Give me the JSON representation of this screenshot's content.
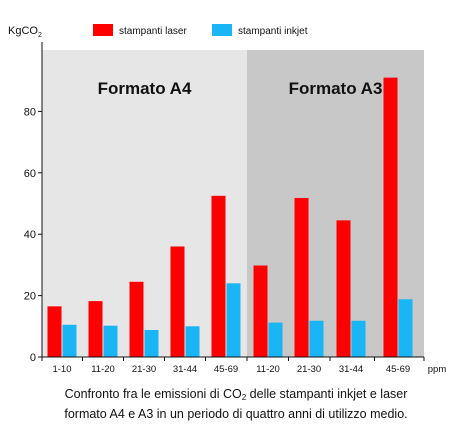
{
  "chart_data": {
    "type": "bar",
    "ylabel_main": "KgCO",
    "ylabel_sub": "2",
    "xlabel": "ppm",
    "ylim": [
      0,
      100
    ],
    "yticks": [
      0,
      20,
      40,
      60,
      80
    ],
    "grid": false,
    "legend_position": "top",
    "panels": [
      {
        "title": "Formato A4",
        "background": "#e6e6e6"
      },
      {
        "title": "Formato A3",
        "background": "#c8c8c8"
      }
    ],
    "categories": [
      {
        "label": "1-10",
        "panel": 0
      },
      {
        "label": "11-20",
        "panel": 0
      },
      {
        "label": "21-30",
        "panel": 0
      },
      {
        "label": "31-44",
        "panel": 0
      },
      {
        "label": "45-69",
        "panel": 0
      },
      {
        "label": "11-20",
        "panel": 1
      },
      {
        "label": "21-30",
        "panel": 1
      },
      {
        "label": "31-44",
        "panel": 1
      },
      {
        "label": "45-69",
        "panel": 1
      }
    ],
    "series": [
      {
        "name": "stampanti laser",
        "color": "#ff0000",
        "values": [
          16.5,
          18.2,
          24.5,
          36,
          52.5,
          29.8,
          51.8,
          44.5,
          91
        ]
      },
      {
        "name": "stampanti inkjet",
        "color": "#19b5f5",
        "values": [
          10.5,
          10.2,
          8.8,
          10,
          24,
          11.2,
          11.8,
          11.8,
          18.8
        ]
      }
    ]
  },
  "caption": {
    "line1_before": "Confronto fra le emissioni di CO",
    "line1_sub": "2",
    "line1_after": " delle stampanti inkjet e laser",
    "line2": "formato A4 e A3 in un periodo di quattro anni di utilizzo medio."
  }
}
